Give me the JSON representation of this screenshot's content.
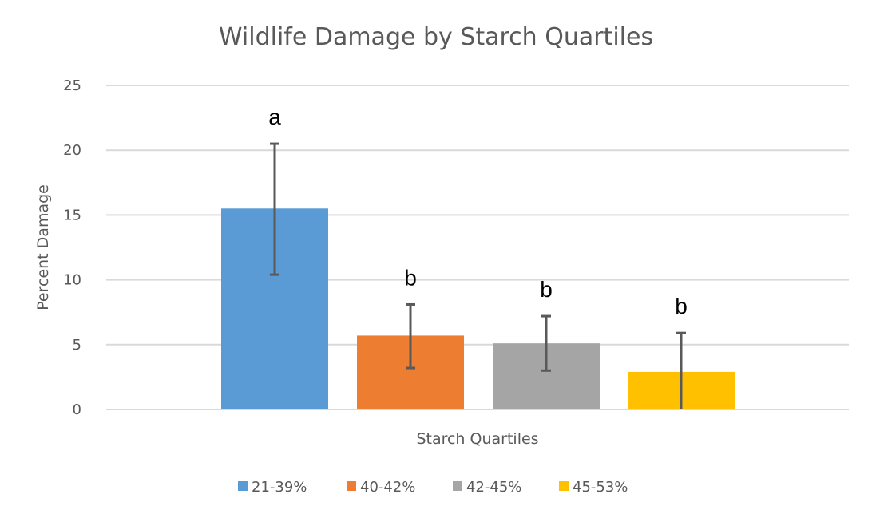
{
  "chart_data": {
    "type": "bar",
    "title": "Wildlife Damage by Starch Quartiles",
    "xlabel": "Starch Quartiles",
    "ylabel": "Percent Damage",
    "ylim": [
      0,
      25
    ],
    "yticks": [
      0,
      5,
      10,
      15,
      20,
      25
    ],
    "grid": true,
    "legend_position": "bottom",
    "series": [
      {
        "name": "21-39%",
        "value": 15.5,
        "error_low": 10.4,
        "error_high": 20.5,
        "label": "a",
        "color": "#5B9BD5"
      },
      {
        "name": "40-42%",
        "value": 5.7,
        "error_low": 3.2,
        "error_high": 8.1,
        "label": "b",
        "color": "#ED7D31"
      },
      {
        "name": "42-45%",
        "value": 5.1,
        "error_low": 3.0,
        "error_high": 7.2,
        "label": "b",
        "color": "#A5A5A5"
      },
      {
        "name": "45-53%",
        "value": 2.9,
        "error_low": 0.0,
        "error_high": 5.9,
        "label": "b",
        "color": "#FFC000"
      }
    ]
  }
}
